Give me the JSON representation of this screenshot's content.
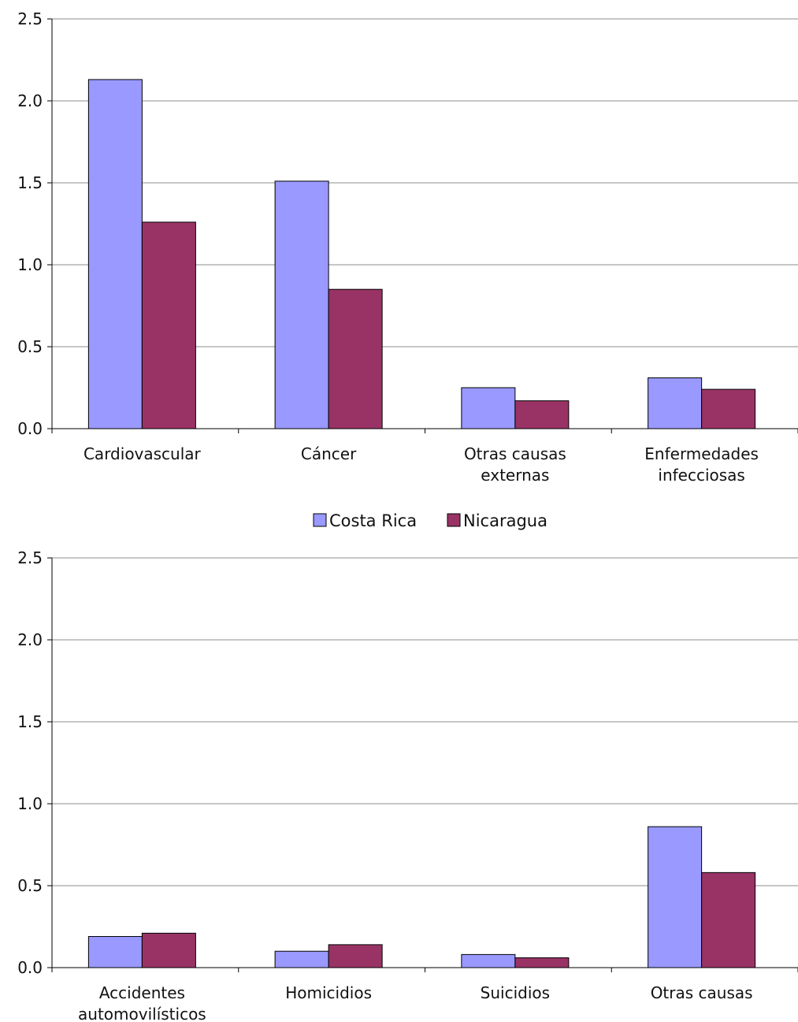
{
  "chart_data": [
    {
      "type": "bar",
      "title": "",
      "xlabel": "",
      "ylabel": "",
      "ylim": [
        0,
        2.5
      ],
      "yticks": [
        "0.0",
        "0.5",
        "1.0",
        "1.5",
        "2.0",
        "2.5"
      ],
      "grid": true,
      "categories": [
        [
          "Cardiovascular"
        ],
        [
          "Cáncer"
        ],
        [
          "Otras causas",
          "externas"
        ],
        [
          "Enfermedades",
          "infecciosas"
        ]
      ],
      "series": [
        {
          "name": "Costa Rica",
          "color": "#9999ff",
          "values": [
            2.13,
            1.51,
            0.25,
            0.31
          ]
        },
        {
          "name": "Nicaragua",
          "color": "#993366",
          "values": [
            1.26,
            0.85,
            0.17,
            0.24
          ]
        }
      ]
    },
    {
      "type": "bar",
      "title": "",
      "xlabel": "",
      "ylabel": "",
      "ylim": [
        0,
        2.5
      ],
      "yticks": [
        "0.0",
        "0.5",
        "1.0",
        "1.5",
        "2.0",
        "2.5"
      ],
      "grid": true,
      "categories": [
        [
          "Accidentes",
          "automovilísticos"
        ],
        [
          "Homicidios"
        ],
        [
          "Suicidios"
        ],
        [
          "Otras causas"
        ]
      ],
      "series": [
        {
          "name": "Costa Rica",
          "color": "#9999ff",
          "values": [
            0.19,
            0.1,
            0.08,
            0.86
          ]
        },
        {
          "name": "Nicaragua",
          "color": "#993366",
          "values": [
            0.21,
            0.14,
            0.06,
            0.58
          ]
        }
      ]
    }
  ],
  "legend": {
    "placement": "between-charts",
    "items": [
      {
        "label": "Costa Rica",
        "color": "#9999ff"
      },
      {
        "label": "Nicaragua",
        "color": "#993366"
      }
    ]
  }
}
